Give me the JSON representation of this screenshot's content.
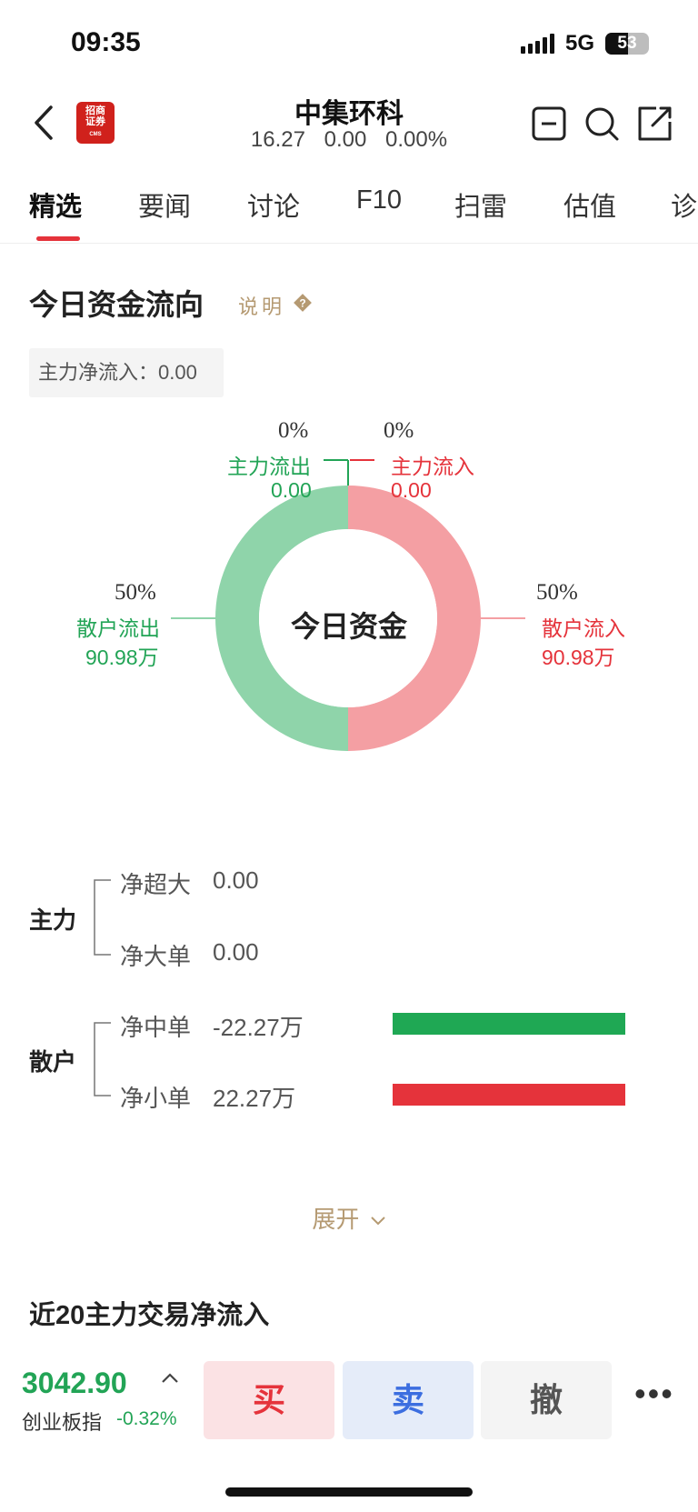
{
  "status": {
    "time": "09:35",
    "network": "5G",
    "battery": "53",
    "battery_level": 0.53
  },
  "header": {
    "logo_text": "招商证券",
    "logo_sub": "CMS",
    "stock_name": "中集环科",
    "quote": "16.27  0.00  0.00%",
    "icons": [
      "back-arrow-icon",
      "minimize-icon",
      "search-icon",
      "share-icon"
    ]
  },
  "tabs": [
    "精选",
    "要闻",
    "讨论",
    "F10",
    "扫雷",
    "估值",
    "诊"
  ],
  "fund_flow": {
    "title": "今日资金流向",
    "explain": "说明",
    "main_net_inflow": "主力净流入：0.00",
    "center_label": "今日资金",
    "main_out": {
      "pct": "0%",
      "label": "主力流出",
      "value": "0.00"
    },
    "main_in": {
      "pct": "0%",
      "label": "主力流入",
      "value": "0.00"
    },
    "retail_out": {
      "pct": "50%",
      "label": "散户流出",
      "value": "90.98万"
    },
    "retail_in": {
      "pct": "50%",
      "label": "散户流入",
      "value": "90.98万"
    },
    "colors": {
      "out": "#8fd4aa",
      "in": "#f49fa3",
      "green": "#22a456",
      "red": "#e5333b"
    }
  },
  "breakdown": {
    "main_group": "主力",
    "retail_group": "散户",
    "rows": [
      {
        "label": "净超大",
        "value": "0.00"
      },
      {
        "label": "净大单",
        "value": "0.00"
      },
      {
        "label": "净中单",
        "value": "-22.27万"
      },
      {
        "label": "净小单",
        "value": "22.27万"
      }
    ],
    "expand": "展开"
  },
  "section2_title": "近20主力交易净流入",
  "bottom": {
    "index_value": "3042.90",
    "index_name": "创业板指",
    "index_change": "-0.32%",
    "buy": "买",
    "sell": "卖",
    "cancel": "撤",
    "more": "•••"
  }
}
